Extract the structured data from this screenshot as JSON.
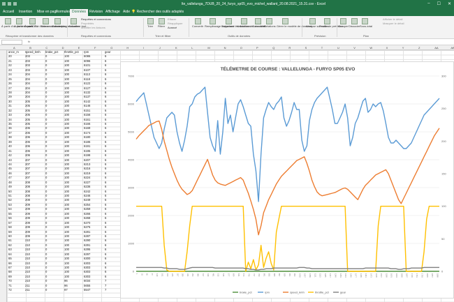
{
  "window": {
    "title": "lte_vallelunga_7DUB_20_24_furyo_sp05_evo_michel_wallant_20.08.2021_15.31.csv - Excel"
  },
  "tabs": [
    {
      "label": "Accueil",
      "active": false
    },
    {
      "label": "Insertion",
      "active": false
    },
    {
      "label": "Mise en page",
      "active": false
    },
    {
      "label": "Formules",
      "active": false
    },
    {
      "label": "Données",
      "active": true
    },
    {
      "label": "Révision",
      "active": false
    },
    {
      "label": "Affichage",
      "active": false
    },
    {
      "label": "Aide",
      "active": false
    }
  ],
  "tellme": "Rechercher des outils adaptés",
  "ribbon": {
    "buttons": [
      {
        "label": "À partir d'un fichier texte/CSV"
      },
      {
        "label": "À partir du web"
      },
      {
        "label": "À partir d'un tableau ou d'une plage"
      },
      {
        "label": "Sources récentes"
      },
      {
        "label": "Connexions existantes"
      },
      {
        "label": "Actualiser tout"
      },
      {
        "label": "Trier"
      },
      {
        "label": "Filtrer"
      },
      {
        "label": "Convertir"
      },
      {
        "label": "Remplissage instantané"
      },
      {
        "label": "Supprimer les doublons"
      },
      {
        "label": "Validation des données"
      },
      {
        "label": "Consolider"
      },
      {
        "label": "Relations"
      },
      {
        "label": "Gérer le modèle de données"
      },
      {
        "label": "Analyse scénarios"
      },
      {
        "label": "Feuille de prévision"
      },
      {
        "label": "Grouper"
      },
      {
        "label": "Dissocier"
      },
      {
        "label": "Sous-total"
      }
    ],
    "small": [
      {
        "label": "Requêtes et connexions"
      },
      {
        "label": "Propriétés"
      },
      {
        "label": "Modifier les liaisons"
      },
      {
        "label": "Effacer"
      },
      {
        "label": "Réappliquer"
      },
      {
        "label": "Avancé"
      },
      {
        "label": "Afficher le détail"
      },
      {
        "label": "Masquer le détail"
      }
    ],
    "groups": [
      {
        "label": "Récupérer et transformer des données"
      },
      {
        "label": "Requêtes et connexions"
      },
      {
        "label": "Trier et filtrer"
      },
      {
        "label": "Outils de données"
      },
      {
        "label": "Prévision"
      },
      {
        "label": "Plan"
      }
    ]
  },
  "columns": [
    "A",
    "B",
    "C",
    "D",
    "E",
    "F",
    "G",
    "H",
    "I",
    "J",
    "K",
    "L",
    "M",
    "N",
    "O",
    "P",
    "Q",
    "R",
    "S",
    "T",
    "U",
    "V",
    "W",
    "X",
    "Y",
    "Z",
    "AA",
    "AB"
  ],
  "table": {
    "headers": [
      "ance_m",
      "speed_kmh",
      "brake_pct",
      "throttle_pct",
      "rpm",
      "gear"
    ],
    "rows": [
      [
        "20",
        "203",
        "0",
        "100",
        "6086",
        "6"
      ],
      [
        "21",
        "203",
        "0",
        "100",
        "6096",
        "6"
      ],
      [
        "22",
        "203",
        "0",
        "100",
        "6101",
        "6"
      ],
      [
        "23",
        "203",
        "0",
        "100",
        "6107",
        "6"
      ],
      [
        "24",
        "204",
        "0",
        "100",
        "6113",
        "6"
      ],
      [
        "25",
        "204",
        "0",
        "100",
        "6118",
        "6"
      ],
      [
        "26",
        "204",
        "0",
        "100",
        "6122",
        "6"
      ],
      [
        "27",
        "204",
        "0",
        "100",
        "6127",
        "6"
      ],
      [
        "28",
        "204",
        "0",
        "100",
        "6132",
        "6"
      ],
      [
        "29",
        "204",
        "0",
        "100",
        "6137",
        "6"
      ],
      [
        "30",
        "205",
        "0",
        "100",
        "6142",
        "6"
      ],
      [
        "31",
        "205",
        "0",
        "100",
        "6146",
        "6"
      ],
      [
        "32",
        "205",
        "0",
        "100",
        "6151",
        "6"
      ],
      [
        "33",
        "205",
        "0",
        "100",
        "6156",
        "6"
      ],
      [
        "34",
        "205",
        "0",
        "100",
        "6161",
        "6"
      ],
      [
        "35",
        "205",
        "0",
        "100",
        "6166",
        "6"
      ],
      [
        "36",
        "206",
        "0",
        "100",
        "6169",
        "6"
      ],
      [
        "37",
        "206",
        "0",
        "100",
        "6174",
        "6"
      ],
      [
        "38",
        "206",
        "0",
        "100",
        "6180",
        "6"
      ],
      [
        "39",
        "206",
        "0",
        "100",
        "6186",
        "6"
      ],
      [
        "40",
        "206",
        "0",
        "100",
        "6191",
        "6"
      ],
      [
        "41",
        "206",
        "0",
        "100",
        "6195",
        "6"
      ],
      [
        "42",
        "206",
        "0",
        "100",
        "6198",
        "6"
      ],
      [
        "43",
        "207",
        "0",
        "100",
        "6207",
        "6"
      ],
      [
        "44",
        "207",
        "0",
        "100",
        "6213",
        "6"
      ],
      [
        "45",
        "207",
        "0",
        "100",
        "6216",
        "6"
      ],
      [
        "46",
        "207",
        "0",
        "100",
        "6219",
        "6"
      ],
      [
        "47",
        "207",
        "0",
        "100",
        "6224",
        "6"
      ],
      [
        "48",
        "208",
        "0",
        "100",
        "6227",
        "6"
      ],
      [
        "49",
        "208",
        "0",
        "100",
        "6236",
        "6"
      ],
      [
        "50",
        "208",
        "0",
        "100",
        "6242",
        "6"
      ],
      [
        "51",
        "208",
        "0",
        "100",
        "6246",
        "6"
      ],
      [
        "52",
        "208",
        "0",
        "100",
        "6249",
        "6"
      ],
      [
        "53",
        "209",
        "0",
        "100",
        "6254",
        "6"
      ],
      [
        "54",
        "209",
        "0",
        "100",
        "6259",
        "6"
      ],
      [
        "55",
        "209",
        "0",
        "100",
        "6266",
        "6"
      ],
      [
        "56",
        "209",
        "0",
        "100",
        "6268",
        "6"
      ],
      [
        "57",
        "209",
        "0",
        "100",
        "6270",
        "6"
      ],
      [
        "58",
        "209",
        "0",
        "100",
        "6275",
        "6"
      ],
      [
        "59",
        "209",
        "0",
        "100",
        "6281",
        "6"
      ],
      [
        "60",
        "209",
        "0",
        "100",
        "6287",
        "6"
      ],
      [
        "61",
        "210",
        "0",
        "100",
        "6290",
        "6"
      ],
      [
        "62",
        "210",
        "0",
        "100",
        "6291",
        "6"
      ],
      [
        "63",
        "210",
        "0",
        "100",
        "6295",
        "6"
      ],
      [
        "64",
        "210",
        "0",
        "100",
        "6297",
        "6"
      ],
      [
        "65",
        "210",
        "0",
        "100",
        "6300",
        "6"
      ],
      [
        "66",
        "210",
        "0",
        "100",
        "6303",
        "6"
      ],
      [
        "67",
        "210",
        "0",
        "100",
        "6303",
        "6"
      ],
      [
        "68",
        "210",
        "0",
        "100",
        "6303",
        "6"
      ],
      [
        "69",
        "210",
        "0",
        "100",
        "6303",
        "6"
      ],
      [
        "70",
        "210",
        "0",
        "96",
        "6034",
        "7"
      ],
      [
        "71",
        "211",
        "0",
        "96",
        "5655",
        "7"
      ],
      [
        "72",
        "211",
        "0",
        "97",
        "5547",
        "7"
      ]
    ]
  },
  "chart_data": {
    "type": "line",
    "title": "TÉLÉMETRIE DE COURSE : VALLELUNGA - FURYO SP05 EVO",
    "xlabel": "",
    "ylabel": "",
    "ylim_left": [
      0,
      7000
    ],
    "ylim_right": [
      0,
      300
    ],
    "left_ticks": [
      "0",
      "1000",
      "2000",
      "3000",
      "4000",
      "5000",
      "6000",
      "7000"
    ],
    "right_ticks": [
      "0",
      "50",
      "100",
      "150",
      "200",
      "250",
      "300"
    ],
    "grid": true,
    "legend": "bottom",
    "x_points": 120,
    "series": [
      {
        "name": "brake_pct",
        "axis": "right",
        "color": "#4e8f3a",
        "values": [
          0,
          0,
          0,
          0,
          0,
          0,
          0,
          0,
          0,
          0,
          0,
          0,
          0,
          0,
          0,
          0,
          0,
          0,
          0,
          0,
          0,
          0,
          0,
          0,
          0,
          0,
          0,
          0,
          0,
          0,
          0,
          0,
          0,
          0,
          0,
          0,
          0,
          0,
          0,
          0,
          0,
          0,
          0,
          0,
          0,
          0,
          0,
          0,
          0,
          0,
          0,
          0,
          0,
          0,
          0,
          0,
          0,
          0,
          0,
          0,
          0,
          0,
          0,
          0,
          0,
          0,
          0,
          0,
          0,
          0,
          0,
          0,
          0,
          0,
          0,
          0,
          0,
          0,
          0,
          0,
          0,
          0,
          0,
          0,
          0,
          0,
          0,
          0,
          0,
          0,
          0,
          0,
          0,
          0,
          0,
          0,
          0,
          0,
          0,
          0,
          0,
          0,
          0,
          0,
          0,
          0,
          0,
          0,
          0,
          0,
          0,
          0,
          0,
          0,
          0,
          0,
          0,
          0,
          0,
          0
        ]
      },
      {
        "name": "rpm",
        "axis": "left",
        "color": "#5b9bd5",
        "values": [
          6086,
          6200,
          6300,
          6400,
          6000,
          5600,
          5200,
          4800,
          4600,
          4400,
          4600,
          5100,
          5500,
          5600,
          5700,
          5600,
          5000,
          4600,
          4300,
          4700,
          5200,
          5900,
          6000,
          6250,
          6350,
          6400,
          6500,
          6600,
          5700,
          4800,
          4500,
          4300,
          5400,
          4200,
          5000,
          6200,
          5300,
          5600,
          5000,
          5500,
          6000,
          6150,
          5900,
          5600,
          5300,
          5200,
          4200,
          3600,
          2500,
          4200,
          5500,
          5800,
          6050,
          5900,
          5800,
          6000,
          6100,
          6250,
          5500,
          5200,
          5400,
          5700,
          6050,
          5800,
          5800,
          4700,
          4300,
          4500,
          5400,
          5800,
          6050,
          6200,
          6300,
          6400,
          6500,
          6600,
          6200,
          5800,
          5300,
          5300,
          5500,
          5700,
          6000,
          5500,
          4500,
          4800,
          5300,
          5500,
          5800,
          6100,
          6200,
          5700,
          5800,
          6000,
          5900,
          6000,
          6050,
          5750,
          5300,
          4800,
          4600,
          4600,
          4700,
          4600,
          4500,
          4400,
          4400,
          4500,
          4600,
          4800,
          5000,
          5200,
          5400,
          5600,
          5700,
          5800,
          5900,
          6000,
          6100,
          6200
        ]
      },
      {
        "name": "speed_kmh",
        "axis": "right",
        "color": "#ed7d31",
        "values": [
          203,
          208,
          212,
          216,
          220,
          224,
          226,
          228,
          230,
          231,
          218,
          200,
          186,
          172,
          160,
          150,
          140,
          132,
          126,
          122,
          118,
          120,
          124,
          132,
          140,
          148,
          156,
          164,
          172,
          160,
          148,
          140,
          136,
          134,
          133,
          132,
          134,
          136,
          138,
          140,
          142,
          144,
          140,
          130,
          120,
          108,
          95,
          80,
          56,
          70,
          90,
          100,
          110,
          118,
          126,
          134,
          140,
          146,
          150,
          154,
          158,
          162,
          166,
          170,
          172,
          174,
          176,
          166,
          154,
          140,
          130,
          122,
          118,
          116,
          117,
          118,
          119,
          120,
          121,
          123,
          125,
          127,
          128,
          126,
          122,
          118,
          114,
          110,
          118,
          126,
          132,
          136,
          140,
          144,
          148,
          150,
          152,
          154,
          156,
          150,
          140,
          130,
          120,
          110,
          104,
          112,
          120,
          128,
          136,
          144,
          152,
          160,
          168,
          176,
          184,
          192,
          200,
          208,
          214,
          220
        ]
      },
      {
        "name": "throttle_pct",
        "axis": "right",
        "color": "#ffc000",
        "values": [
          100,
          100,
          100,
          100,
          100,
          100,
          100,
          100,
          100,
          100,
          100,
          40,
          2,
          0,
          0,
          0,
          0,
          0,
          0,
          0,
          30,
          70,
          100,
          100,
          100,
          100,
          100,
          100,
          100,
          100,
          100,
          100,
          100,
          100,
          100,
          100,
          100,
          100,
          100,
          100,
          100,
          100,
          100,
          0,
          14,
          4,
          18,
          2,
          10,
          40,
          6,
          20,
          30,
          12,
          2,
          60,
          80,
          100,
          100,
          100,
          100,
          100,
          100,
          100,
          100,
          100,
          100,
          100,
          100,
          100,
          100,
          100,
          100,
          100,
          100,
          100,
          100,
          100,
          100,
          100,
          100,
          100,
          100,
          0,
          0,
          0,
          0,
          0,
          0,
          0,
          0,
          0,
          0,
          0,
          0,
          70,
          100,
          100,
          100,
          100,
          100,
          100,
          100,
          100,
          100,
          100,
          0,
          0,
          0,
          0,
          0,
          0,
          0,
          30,
          80,
          100,
          100,
          100,
          100,
          100
        ]
      },
      {
        "name": "gear",
        "axis": "right",
        "color": "#7f7f7f",
        "values": [
          6,
          6,
          6,
          6,
          6,
          6,
          6,
          6,
          6,
          6,
          6,
          5,
          5,
          4,
          4,
          4,
          4,
          3,
          3,
          3,
          4,
          5,
          6,
          6,
          6,
          6,
          6,
          6,
          6,
          6,
          6,
          5,
          5,
          5,
          5,
          5,
          5,
          5,
          5,
          5,
          5,
          5,
          5,
          4,
          4,
          3,
          3,
          2,
          2,
          3,
          3,
          4,
          4,
          4,
          5,
          5,
          5,
          5,
          5,
          5,
          5,
          5,
          5,
          5,
          6,
          6,
          6,
          5,
          5,
          4,
          4,
          4,
          4,
          4,
          4,
          4,
          4,
          4,
          4,
          4,
          4,
          4,
          4,
          4,
          4,
          4,
          4,
          4,
          4,
          4,
          5,
          5,
          5,
          5,
          5,
          5,
          5,
          5,
          5,
          5,
          4,
          4,
          4,
          3,
          3,
          4,
          4,
          4,
          5,
          5,
          5,
          5,
          5,
          6,
          6,
          6,
          6,
          6,
          6,
          6
        ]
      }
    ]
  }
}
